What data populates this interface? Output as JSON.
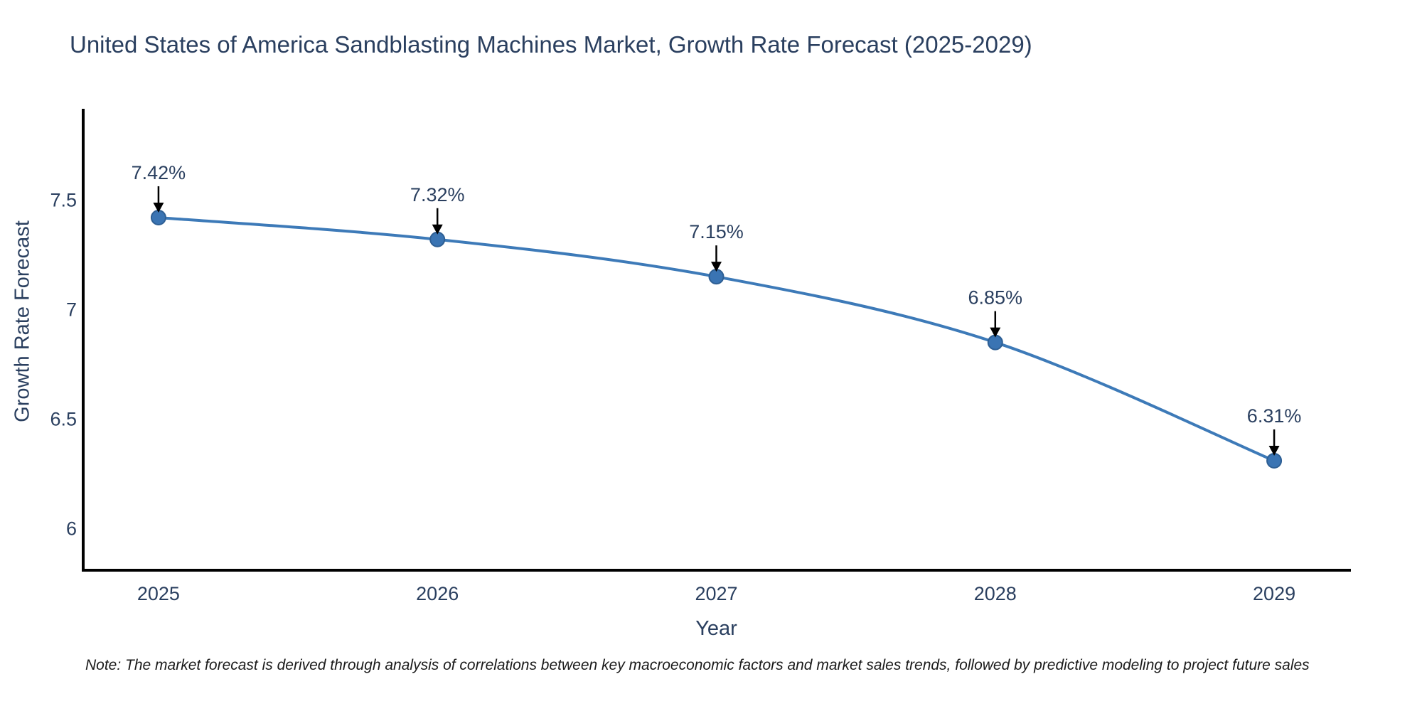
{
  "chart_data": {
    "type": "line",
    "title": "United States of America Sandblasting Machines Market, Growth Rate Forecast (2025-2029)",
    "xlabel": "Year",
    "ylabel": "Growth Rate Forecast",
    "x": [
      2025,
      2026,
      2027,
      2028,
      2029
    ],
    "series": [
      {
        "name": "Growth Rate Forecast",
        "values": [
          7.42,
          7.32,
          7.15,
          6.85,
          6.31
        ],
        "point_labels": [
          "7.42%",
          "7.32%",
          "7.15%",
          "6.85%",
          "6.31%"
        ]
      }
    ],
    "xticks": [
      "2025",
      "2026",
      "2027",
      "2028",
      "2029"
    ],
    "yticks": [
      "7.5",
      "7",
      "6.5",
      "6"
    ],
    "ytick_values": [
      7.5,
      7,
      6.5,
      6
    ],
    "xlim": [
      2024.73,
      2029.27
    ],
    "ylim": [
      5.81,
      7.91
    ],
    "grid": false,
    "legend_position": "none",
    "line_shape": "spline",
    "colors": {
      "line": "#3d7ab8",
      "marker_fill": "#3a74b3",
      "marker_stroke": "#2e5f94",
      "axis": "#000000",
      "tick_text": "#2a3f5f",
      "annotation_text": "#2a3f5f",
      "annotation_arrow": "#000000",
      "title_text": "#2a3f5f",
      "background": "#ffffff"
    },
    "note": "Note: The market forecast is derived through analysis of correlations between key macroeconomic factors and market sales trends, followed by predictive modeling to project future sales"
  }
}
